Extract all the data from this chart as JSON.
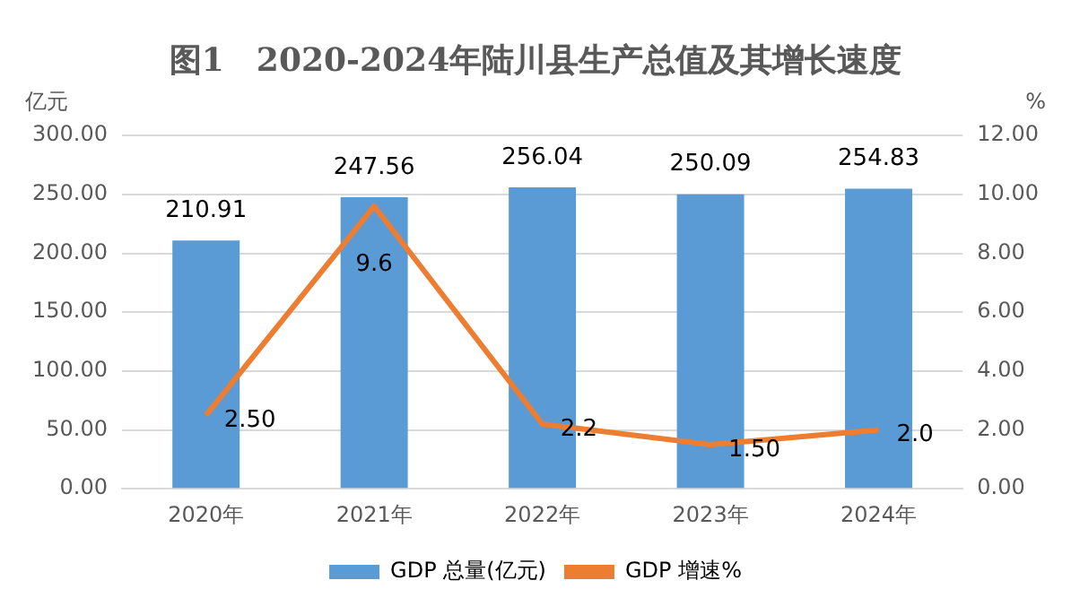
{
  "chart_data": {
    "type": "bar",
    "title": "图1　2020-2024年陆川县生产总值及其增长速度",
    "ylabel": "亿元",
    "y2label": "%",
    "categories": [
      "2020年",
      "2021年",
      "2022年",
      "2023年",
      "2024年"
    ],
    "series": [
      {
        "name": "GDP 总量(亿元)",
        "color": "#5b9bd5",
        "values": [
          210.91,
          247.56,
          256.04,
          250.09,
          254.83
        ],
        "value_labels": [
          "210.91",
          "247.56",
          "256.04",
          "250.09",
          "254.83"
        ]
      },
      {
        "name": "GDP 增速%",
        "type": "line",
        "axis": "y2",
        "color": "#ed7d31",
        "values": [
          2.5,
          9.6,
          2.2,
          1.5,
          2.0
        ],
        "value_labels": [
          "2.50",
          "9.6",
          "2.2",
          "1.50",
          "2.0"
        ]
      }
    ],
    "ylim": [
      0,
      300
    ],
    "yticks": [
      {
        "value": 0,
        "label": "0.00"
      },
      {
        "value": 50,
        "label": "50.00"
      },
      {
        "value": 100,
        "label": "100.00"
      },
      {
        "value": 150,
        "label": "150.00"
      },
      {
        "value": 200,
        "label": "200.00"
      },
      {
        "value": 250,
        "label": "250.00"
      },
      {
        "value": 300,
        "label": "300.00"
      }
    ],
    "y2lim": [
      0,
      12
    ],
    "y2ticks": [
      {
        "value": 0,
        "label": "0.00"
      },
      {
        "value": 2,
        "label": "2.00"
      },
      {
        "value": 4,
        "label": "4.00"
      },
      {
        "value": 6,
        "label": "6.00"
      },
      {
        "value": 8,
        "label": "8.00"
      },
      {
        "value": 10,
        "label": "10.00"
      },
      {
        "value": 12,
        "label": "12.00"
      }
    ],
    "grid": "y",
    "legend": "bottom",
    "marker": "none",
    "line_style": "solid"
  }
}
